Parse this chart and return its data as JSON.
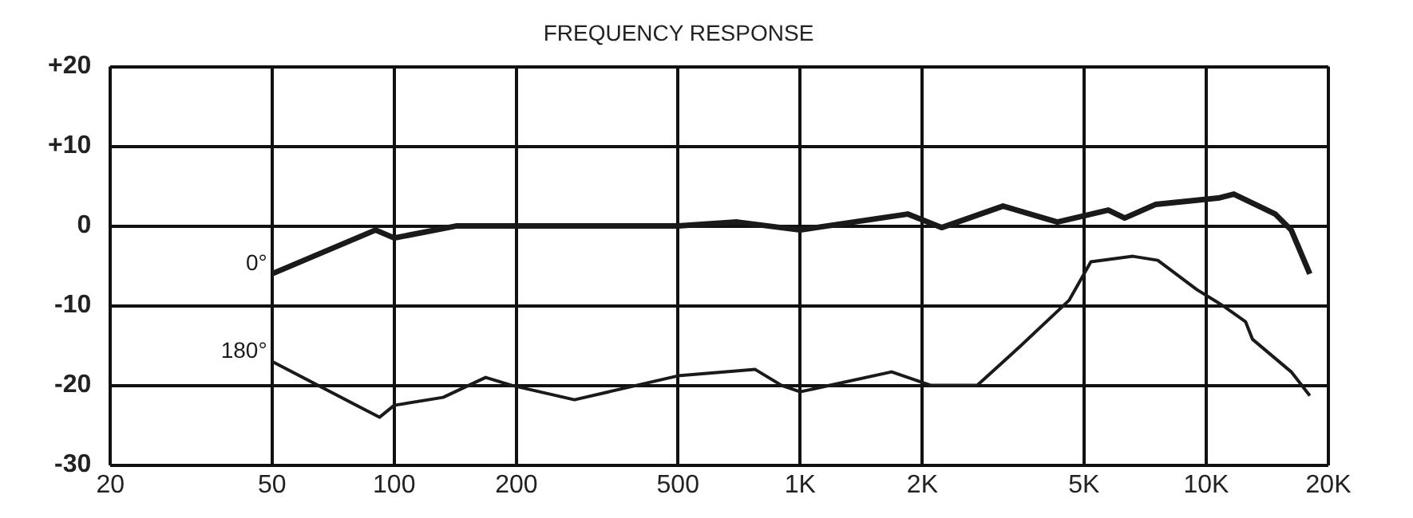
{
  "chart_data": {
    "type": "line",
    "title": "FREQUENCY RESPONSE",
    "series": [
      {
        "name": "0°",
        "color": "#1a1a1a",
        "x": [
          50,
          90,
          100,
          142,
          200,
          500,
          700,
          1000,
          1840,
          2230,
          3160,
          4300,
          5740,
          6300,
          7500,
          10700,
          11700,
          14800,
          16200,
          18000
        ],
        "values": [
          -6,
          -0.5,
          -1.5,
          0,
          0,
          0,
          0.5,
          -0.5,
          1.5,
          -0.2,
          2.5,
          0.5,
          2,
          1,
          2.7,
          3.5,
          4,
          1.5,
          -0.5,
          -6
        ]
      },
      {
        "name": "180°",
        "color": "#1a1a1a",
        "x": [
          50,
          92,
          100,
          132,
          168,
          195,
          278,
          500,
          775,
          900,
          1000,
          1680,
          2100,
          2730,
          3500,
          4600,
          5200,
          6600,
          7600,
          9500,
          11000,
          12500,
          13000,
          16200,
          18000
        ],
        "values": [
          -17,
          -24,
          -22.5,
          -21.5,
          -19,
          -20,
          -21.8,
          -18.8,
          -18,
          -20,
          -20.8,
          -18.3,
          -20,
          -20,
          -15,
          -9.3,
          -4.5,
          -3.8,
          -4.3,
          -8,
          -10,
          -12,
          -14.2,
          -18.3,
          -21.3
        ]
      }
    ],
    "xlim": [
      20,
      20000
    ],
    "xticks": [
      20,
      50,
      100,
      200,
      500,
      {
        "value": 1000,
        "label": "1K"
      },
      {
        "value": 2000,
        "label": "2K"
      },
      {
        "value": 5000,
        "label": "5K"
      },
      {
        "value": 10000,
        "label": "10K"
      },
      {
        "value": 20000,
        "label": "20K"
      }
    ],
    "ylim": [
      -30,
      20
    ],
    "yticks": [
      -30,
      -20,
      -10,
      0,
      {
        "value": 10,
        "label": "+10"
      },
      {
        "value": 20,
        "label": "+20"
      }
    ],
    "log": "x",
    "grid": true,
    "legend": false,
    "marker": "none",
    "line_style": "solid"
  }
}
